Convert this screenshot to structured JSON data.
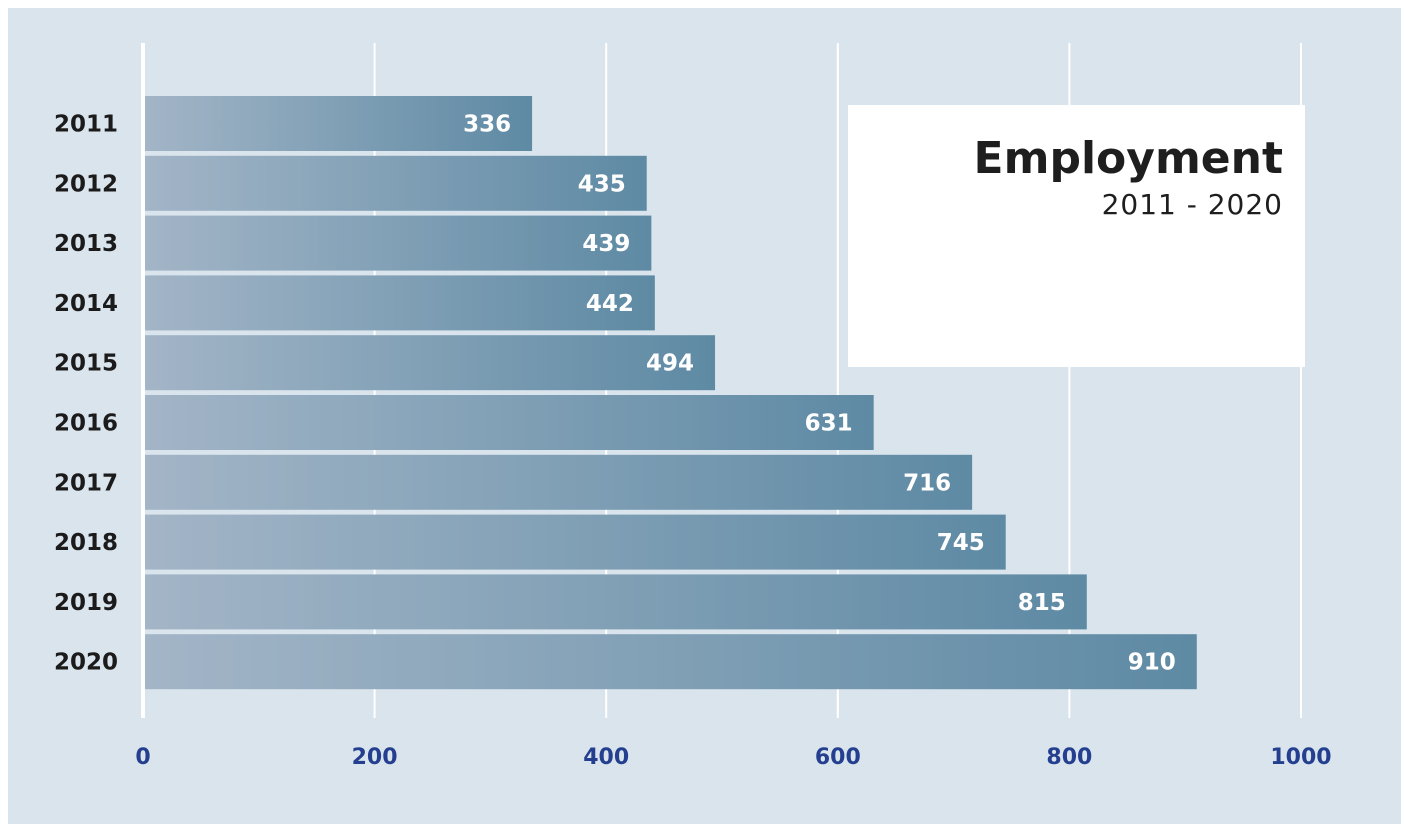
{
  "chart_data": {
    "type": "bar",
    "orientation": "horizontal",
    "title": "Employment",
    "subtitle": "2011 - 2020",
    "categories": [
      "2011",
      "2012",
      "2013",
      "2014",
      "2015",
      "2016",
      "2017",
      "2018",
      "2019",
      "2020"
    ],
    "values": [
      336,
      435,
      439,
      442,
      494,
      631,
      716,
      745,
      815,
      910
    ],
    "xlim": [
      0,
      1000
    ],
    "x_ticks": [
      0,
      200,
      400,
      600,
      800,
      1000
    ],
    "grid": "vertical",
    "data_labels": true,
    "colors": {
      "background": "#dae4ec",
      "bar_start": "#a3b5c7",
      "bar_end": "#5e8aa4",
      "tick_label": "#243f8f",
      "gridline": "#ffffff"
    }
  }
}
